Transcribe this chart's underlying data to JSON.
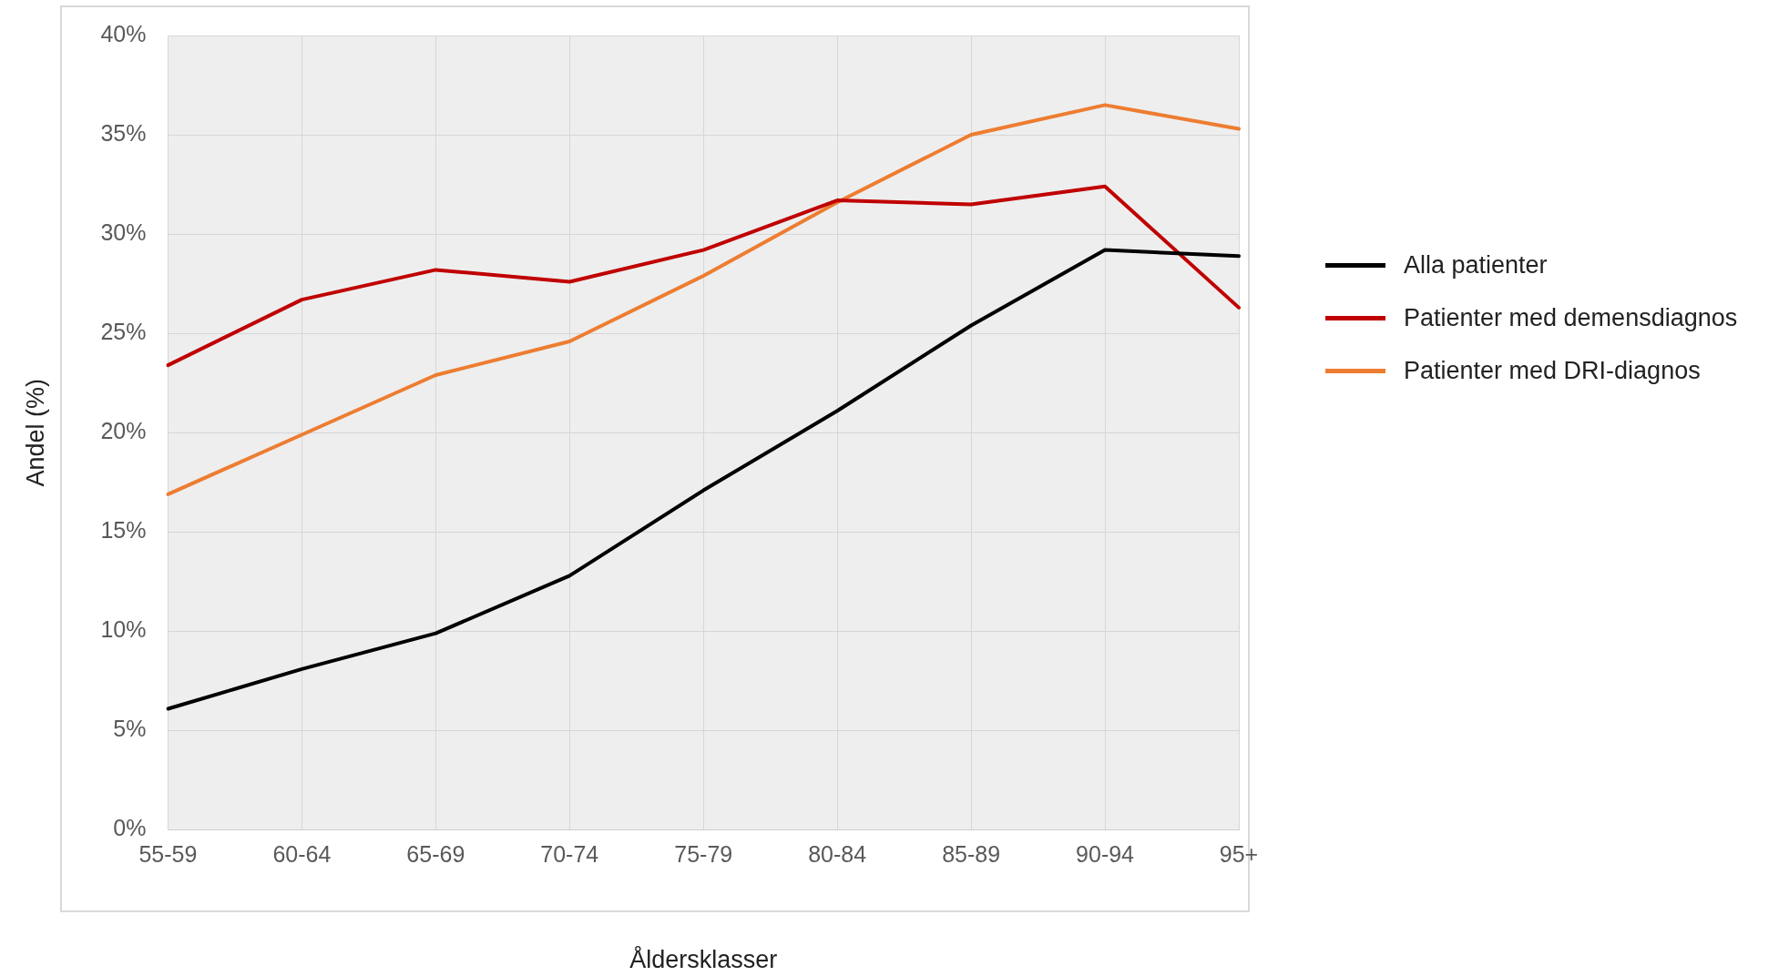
{
  "chart_data": {
    "type": "line",
    "xlabel": "Åldersklasser",
    "ylabel": "Andel (%)",
    "categories": [
      "55-59",
      "60-64",
      "65-69",
      "70-74",
      "75-79",
      "80-84",
      "85-89",
      "90-94",
      "95+"
    ],
    "series": [
      {
        "name": "Alla patienter",
        "color": "#000000",
        "values": [
          6.1,
          8.1,
          9.9,
          12.8,
          17.1,
          21.1,
          25.4,
          29.2,
          28.9
        ]
      },
      {
        "name": "Patienter med demensdiagnos",
        "color": "#c00000",
        "values": [
          23.4,
          26.7,
          28.2,
          27.6,
          29.2,
          31.7,
          31.5,
          32.4,
          26.3
        ]
      },
      {
        "name": "Patienter med DRI-diagnos",
        "color": "#ed7d31",
        "values": [
          16.9,
          19.9,
          22.9,
          24.6,
          27.9,
          31.6,
          35.0,
          36.5,
          35.3
        ]
      }
    ],
    "ylim": [
      0,
      40
    ],
    "yticks": [
      {
        "value": 0,
        "label": "0%"
      },
      {
        "value": 5,
        "label": "5%"
      },
      {
        "value": 10,
        "label": "10%"
      },
      {
        "value": 15,
        "label": "15%"
      },
      {
        "value": 20,
        "label": "20%"
      },
      {
        "value": 25,
        "label": "25%"
      },
      {
        "value": 30,
        "label": "30%"
      },
      {
        "value": 35,
        "label": "35%"
      },
      {
        "value": 40,
        "label": "40%"
      }
    ],
    "grid": true,
    "legend": "right",
    "marker": "none",
    "line_style": "solid"
  }
}
